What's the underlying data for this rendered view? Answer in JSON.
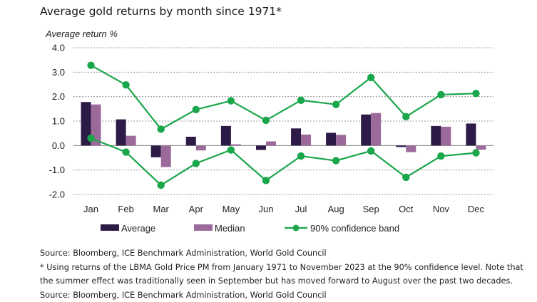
{
  "chart_data": {
    "type": "bar",
    "title": "Average gold returns by month since 1971*",
    "ylabel": "Average return %",
    "xlabel": "",
    "ylim": [
      -2.0,
      4.0
    ],
    "yticks": [
      "4.0",
      "3.0",
      "2.0",
      "1.0",
      "0.0",
      "-1.0",
      "-2.0"
    ],
    "ytick_values": [
      4,
      3,
      2,
      1,
      0,
      -1,
      -2
    ],
    "grid": true,
    "legend_position": "bottom",
    "categories": [
      "Jan",
      "Feb",
      "Mar",
      "Apr",
      "May",
      "Jun",
      "Jul",
      "Aug",
      "Sep",
      "Oct",
      "Nov",
      "Dec"
    ],
    "series": [
      {
        "name": "Average",
        "type": "bar",
        "color": "#2e1a47",
        "values": [
          1.78,
          1.07,
          -0.48,
          0.36,
          0.8,
          -0.18,
          0.7,
          0.52,
          1.27,
          -0.06,
          0.8,
          0.9
        ]
      },
      {
        "name": "Median",
        "type": "bar",
        "color": "#9b6a9b",
        "values": [
          1.68,
          0.4,
          -0.88,
          -0.2,
          0.05,
          0.17,
          0.45,
          0.44,
          1.33,
          -0.27,
          0.77,
          -0.17
        ]
      },
      {
        "name": "90% confidence band",
        "type": "line",
        "color": "#1aa64a",
        "upper": [
          3.28,
          2.48,
          0.67,
          1.47,
          1.83,
          1.03,
          1.85,
          1.68,
          2.78,
          1.18,
          2.08,
          2.13
        ],
        "lower": [
          0.3,
          -0.27,
          -1.62,
          -0.73,
          -0.18,
          -1.43,
          -0.43,
          -0.62,
          -0.22,
          -1.3,
          -0.43,
          -0.3
        ]
      }
    ]
  },
  "footer": {
    "source1": "Source: Bloomberg, ICE Benchmark Administration, World Gold Council",
    "note1": "* Using returns of the LBMA Gold Price PM from January 1971 to November 2023 at the 90% confidence level. Note that",
    "note2": "the summer effect was traditionally seen in September but has moved forward to August over the past two decades.",
    "source2": "Source: Bloomberg, ICE Benchmark Administration, World Gold Council"
  }
}
